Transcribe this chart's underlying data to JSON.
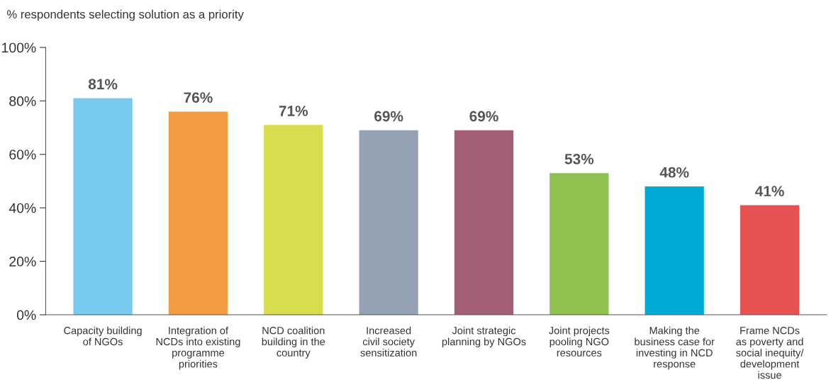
{
  "chart_data": {
    "type": "bar",
    "title": "% respondents selecting solution as a priority",
    "categories": [
      "Capacity building\nof NGOs",
      "Integration of\nNCDs into existing\nprogramme\npriorities",
      "NCD coalition\nbuilding in the\ncountry",
      "Increased\ncivil society\nsensitization",
      "Joint strategic\nplanning by NGOs",
      "Joint projects\npooling NGO\nresources",
      "Making the\nbusiness case for\ninvesting in NCD\nresponse",
      "Frame NCDs\nas poverty and\nsocial inequity/\ndevelopment\nissue"
    ],
    "values": [
      81,
      76,
      71,
      69,
      69,
      53,
      48,
      41
    ],
    "colors": [
      "#77c9ee",
      "#f29b40",
      "#d8dd4e",
      "#95a2b4",
      "#a45f78",
      "#8fc050",
      "#00acd6",
      "#e65252"
    ],
    "value_labels": [
      "81%",
      "76%",
      "71%",
      "69%",
      "69%",
      "53%",
      "48%",
      "41%"
    ],
    "ylim": [
      0,
      100
    ],
    "yticks": [
      {
        "value": 0,
        "label": "0%"
      },
      {
        "value": 20,
        "label": "20%"
      },
      {
        "value": 40,
        "label": "40%"
      },
      {
        "value": 60,
        "label": "60%"
      },
      {
        "value": 80,
        "label": "80%"
      },
      {
        "value": 100,
        "label": "100%"
      }
    ],
    "grid": false,
    "legend": false
  }
}
